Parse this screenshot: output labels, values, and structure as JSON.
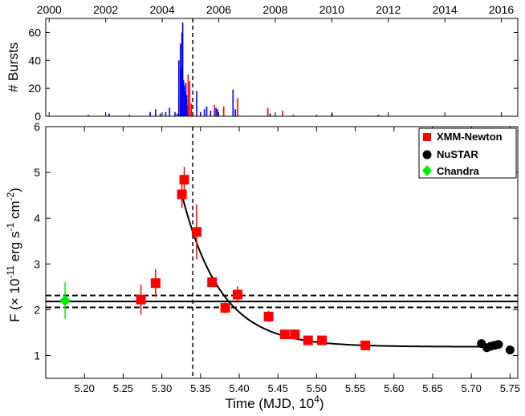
{
  "chart_data": [
    {
      "type": "bar",
      "ylabel": "# Bursts",
      "ylim": [
        0,
        70
      ],
      "yticks": [
        0,
        20,
        40,
        60
      ],
      "top_axis_ticks": [
        2000,
        2002,
        2004,
        2006,
        2008,
        2010,
        2012,
        2014,
        2016
      ],
      "xlim_mjd": [
        5.15,
        5.76
      ],
      "series": [
        {
          "color": "#0000ff",
          "x": [
            5.205,
            5.232,
            5.258,
            5.285,
            5.292,
            5.298,
            5.305,
            5.31,
            5.317,
            5.32,
            5.322,
            5.324,
            5.325,
            5.326,
            5.327,
            5.328,
            5.329,
            5.33,
            5.331,
            5.332,
            5.333,
            5.345,
            5.35,
            5.355,
            5.358,
            5.363,
            5.37,
            5.372,
            5.392,
            5.395,
            5.44,
            5.47,
            5.5,
            5.52,
            5.58
          ],
          "values": [
            1,
            2,
            1,
            3,
            5,
            2,
            3,
            6,
            3,
            2,
            40,
            52,
            35,
            60,
            67,
            26,
            22,
            18,
            24,
            15,
            8,
            18,
            3,
            5,
            7,
            4,
            6,
            5,
            19,
            5,
            2,
            1,
            1,
            2,
            1
          ]
        },
        {
          "color": "#ff0000",
          "x": [
            5.334,
            5.336,
            5.338,
            5.368,
            5.38,
            5.398,
            5.437,
            5.456
          ],
          "values": [
            30,
            25,
            9,
            8,
            7,
            13,
            6,
            4
          ]
        }
      ]
    },
    {
      "type": "scatter",
      "xlabel": "Time (MJD, 10",
      "xlabel_sup": "4",
      "xlabel_tail": ")",
      "ylabel_parts": [
        "F (× 10",
        "-11",
        " erg s",
        "-1",
        " cm",
        "-2",
        ")"
      ],
      "xlim": [
        5.15,
        5.76
      ],
      "ylim": [
        0.5,
        6
      ],
      "xticks": [
        "5.20",
        "5.25",
        "5.30",
        "5.35",
        "5.40",
        "5.45",
        "5.50",
        "5.55",
        "5.60",
        "5.65",
        "5.70",
        "5.75"
      ],
      "yticks": [
        1,
        2,
        3,
        4,
        5,
        6
      ],
      "vertical_line_x": 5.34,
      "hlines": [
        {
          "y": 2.18,
          "style": "solid"
        },
        {
          "y": 2.31,
          "style": "dashed"
        },
        {
          "y": 2.05,
          "style": "dashed"
        }
      ],
      "series": [
        {
          "name": "XMM-Newton",
          "marker": "square",
          "color": "#ff0000",
          "x": [
            5.273,
            5.292,
            5.326,
            5.329,
            5.345,
            5.365,
            5.382,
            5.398,
            5.438,
            5.459,
            5.472,
            5.489,
            5.507,
            5.563
          ],
          "y": [
            2.22,
            2.58,
            4.52,
            4.84,
            3.7,
            2.6,
            2.04,
            2.33,
            1.85,
            1.46,
            1.46,
            1.33,
            1.33,
            1.22
          ],
          "yerr": [
            0.33,
            0.3,
            0.3,
            0.28,
            0.6,
            0.1,
            0.12,
            0.18,
            0.12,
            0.08,
            0.08,
            0.08,
            0.08,
            0.07
          ]
        },
        {
          "name": "NuSTAR",
          "marker": "circle",
          "color": "#000000",
          "x": [
            5.713,
            5.72,
            5.725,
            5.73,
            5.735,
            5.75
          ],
          "y": [
            1.26,
            1.17,
            1.2,
            1.22,
            1.24,
            1.12
          ]
        },
        {
          "name": "Chandra",
          "marker": "diamond",
          "color": "#00ee00",
          "x": [
            5.175
          ],
          "y": [
            2.2
          ],
          "yerr": [
            0.4
          ]
        }
      ],
      "fit_curve": {
        "color": "#000000",
        "x_start": 5.326,
        "x_end": 5.735,
        "model": "exponential decay",
        "baseline": 1.19,
        "amplitude": 3.32,
        "tau": 0.05
      },
      "legend_position": "top-right"
    }
  ]
}
